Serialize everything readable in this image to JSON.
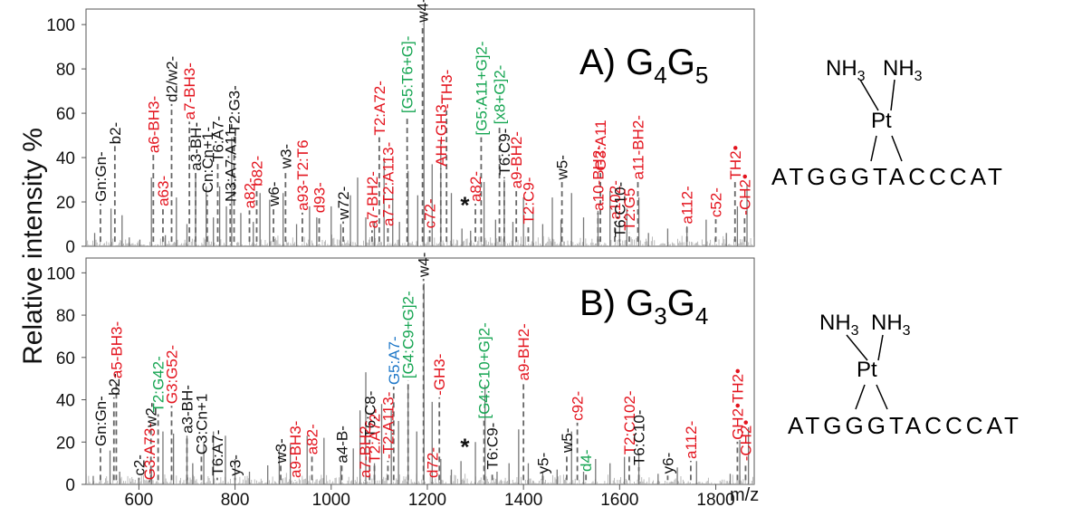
{
  "figure": {
    "ylabel": "Relative intensity %",
    "xunit": "m/z",
    "xticks": [
      600,
      800,
      1000,
      1200,
      1400,
      1600,
      1800
    ],
    "yticks": [
      0,
      20,
      40,
      60,
      80,
      100
    ],
    "colors": {
      "black": "#111111",
      "red": "#e3141e",
      "green": "#16a552",
      "blue": "#1f78c8",
      "gray": "#888888"
    }
  },
  "chart_data": [
    {
      "type": "line",
      "title": "A) G4G5",
      "title_parts": {
        "prefix": "A) G",
        "sub1": "4",
        "mid": "G",
        "sub2": "5"
      },
      "xlim": [
        490,
        1880
      ],
      "ylim": [
        0,
        107
      ],
      "peaks": [
        [
          508,
          6
        ],
        [
          542,
          17
        ],
        [
          565,
          14
        ],
        [
          580,
          4
        ],
        [
          602,
          3
        ],
        [
          626,
          31
        ],
        [
          655,
          5
        ],
        [
          678,
          22
        ],
        [
          700,
          10
        ],
        [
          718,
          33
        ],
        [
          740,
          27
        ],
        [
          755,
          13
        ],
        [
          768,
          27
        ],
        [
          782,
          18
        ],
        [
          793,
          49
        ],
        [
          812,
          15
        ],
        [
          838,
          11
        ],
        [
          852,
          24
        ],
        [
          872,
          21
        ],
        [
          900,
          24
        ],
        [
          928,
          10
        ],
        [
          955,
          18
        ],
        [
          970,
          13
        ],
        [
          1000,
          18
        ],
        [
          1020,
          10
        ],
        [
          1040,
          23
        ],
        [
          1055,
          31
        ],
        [
          1072,
          13
        ],
        [
          1090,
          11
        ],
        [
          1110,
          40
        ],
        [
          1128,
          27
        ],
        [
          1142,
          11
        ],
        [
          1160,
          34
        ],
        [
          1180,
          23
        ],
        [
          1193,
          105
        ],
        [
          1210,
          37
        ],
        [
          1228,
          48
        ],
        [
          1250,
          24
        ],
        [
          1272,
          8
        ],
        [
          1290,
          7
        ],
        [
          1318,
          29
        ],
        [
          1342,
          12
        ],
        [
          1360,
          30
        ],
        [
          1378,
          11
        ],
        [
          1400,
          22
        ],
        [
          1420,
          17
        ],
        [
          1440,
          10
        ],
        [
          1460,
          22
        ],
        [
          1478,
          12
        ],
        [
          1500,
          24
        ],
        [
          1525,
          13
        ],
        [
          1555,
          16
        ],
        [
          1580,
          25
        ],
        [
          1600,
          11
        ],
        [
          1615,
          17
        ],
        [
          1640,
          22
        ],
        [
          1660,
          6
        ],
        [
          1700,
          8
        ],
        [
          1740,
          9
        ],
        [
          1780,
          12
        ],
        [
          1822,
          6
        ],
        [
          1845,
          18
        ],
        [
          1865,
          28
        ]
      ],
      "labels": [
        {
          "t": "Gn:Gn-",
          "m": 520,
          "i": 20,
          "c": "black"
        },
        {
          "t": "b2-",
          "m": 550,
          "i": 46,
          "c": "black"
        },
        {
          "t": "a6-BH3-",
          "m": 630,
          "i": 42,
          "c": "red"
        },
        {
          "t": "a63-",
          "m": 650,
          "i": 18,
          "c": "red"
        },
        {
          "t": "d2/w2-",
          "m": 668,
          "i": 65,
          "c": "black"
        },
        {
          "t": "a7-BH3-",
          "m": 705,
          "i": 57,
          "c": "red"
        },
        {
          "t": "a3-BH-",
          "m": 718,
          "i": 34,
          "c": "black"
        },
        {
          "t": "Cn:Cn+1-",
          "m": 742,
          "i": 24,
          "c": "black"
        },
        {
          "t": "T6:A7-",
          "m": 764,
          "i": 38,
          "c": "black"
        },
        {
          "t": "N3:A7:A11-",
          "m": 790,
          "i": 20,
          "c": "black"
        },
        {
          "t": "T2:G3-",
          "m": 798,
          "i": 51,
          "c": "black"
        },
        {
          "t": "a82-",
          "m": 830,
          "i": 17,
          "c": "red"
        },
        {
          "t": "b82-",
          "m": 845,
          "i": 27,
          "c": "red"
        },
        {
          "t": "w6-",
          "m": 880,
          "i": 18,
          "c": "black"
        },
        {
          "t": "w3-",
          "m": 905,
          "i": 35,
          "c": "black"
        },
        {
          "t": "a93-T2:T6",
          "m": 940,
          "i": 16,
          "c": "red"
        },
        {
          "t": "d93-",
          "m": 975,
          "i": 15,
          "c": "red"
        },
        {
          "t": "w72-",
          "m": 1025,
          "i": 12,
          "c": "black"
        },
        {
          "t": "a7-BH2-",
          "m": 1085,
          "i": 8,
          "c": "red"
        },
        {
          "t": "T2:A72-",
          "m": 1100,
          "i": 50,
          "c": "red"
        },
        {
          "t": "a7-T2:A113-",
          "m": 1118,
          "i": 9,
          "c": "red"
        },
        {
          "t": "[G5:T6+G]-",
          "m": 1158,
          "i": 60,
          "c": "green"
        },
        {
          "t": "w4-",
          "m": 1190,
          "i": 101,
          "c": "black"
        },
        {
          "t": "c72-",
          "m": 1205,
          "i": 8,
          "c": "red"
        },
        {
          "t": "AH+GH3-",
          "m": 1228,
          "i": 36,
          "c": "red"
        },
        {
          "t": "-TH3-",
          "m": 1240,
          "i": 62,
          "c": "red"
        },
        {
          "t": "*",
          "m": 1278,
          "i": 15,
          "c": "black"
        },
        {
          "t": "a82-",
          "m": 1300,
          "i": 20,
          "c": "red"
        },
        {
          "t": "[G5:A11+G]2-",
          "m": 1312,
          "i": 50,
          "c": "green"
        },
        {
          "t": "[x8+G]2-",
          "m": 1350,
          "i": 55,
          "c": "green"
        },
        {
          "t": "T6:C9-",
          "m": 1360,
          "i": 32,
          "c": "black"
        },
        {
          "t": "a9-BH2-",
          "m": 1385,
          "i": 26,
          "c": "red"
        },
        {
          "t": "T2:C9-",
          "m": 1410,
          "i": 10,
          "c": "red"
        },
        {
          "t": "w5-",
          "m": 1480,
          "i": 30,
          "c": "black"
        },
        {
          "t": "a10-BH2-",
          "m": 1555,
          "i": 16,
          "c": "red"
        },
        {
          "t": "G3:A11",
          "m": 1560,
          "i": 34,
          "c": "red"
        },
        {
          "t": "a102-",
          "m": 1590,
          "i": 12,
          "c": "red"
        },
        {
          "t": "T6:C10-",
          "m": 1600,
          "i": 4,
          "c": "black"
        },
        {
          "t": "T2:G5",
          "m": 1620,
          "i": 7,
          "c": "red"
        },
        {
          "t": "a11-BH2-",
          "m": 1638,
          "i": 30,
          "c": "red"
        },
        {
          "t": "a112-",
          "m": 1740,
          "i": 10,
          "c": "red"
        },
        {
          "t": "c52-",
          "m": 1800,
          "i": 13,
          "c": "red"
        },
        {
          "t": "TH2•",
          "m": 1840,
          "i": 30,
          "c": "red"
        },
        {
          "t": "-CH2•",
          "m": 1860,
          "i": 14,
          "c": "red"
        }
      ]
    },
    {
      "type": "line",
      "title": "B) G3G4",
      "title_parts": {
        "prefix": "B) G",
        "sub1": "3",
        "mid": "G",
        "sub2": "4"
      },
      "xlim": [
        490,
        1880
      ],
      "ylim": [
        0,
        107
      ],
      "peaks": [
        [
          505,
          4
        ],
        [
          540,
          16
        ],
        [
          560,
          6
        ],
        [
          600,
          3
        ],
        [
          626,
          7
        ],
        [
          650,
          25
        ],
        [
          672,
          24
        ],
        [
          700,
          23
        ],
        [
          712,
          10
        ],
        [
          735,
          20
        ],
        [
          755,
          25
        ],
        [
          780,
          23
        ],
        [
          800,
          12
        ],
        [
          830,
          6
        ],
        [
          868,
          9
        ],
        [
          892,
          17
        ],
        [
          915,
          19
        ],
        [
          950,
          23
        ],
        [
          985,
          22
        ],
        [
          1020,
          9
        ],
        [
          1046,
          17
        ],
        [
          1060,
          35
        ],
        [
          1072,
          53
        ],
        [
          1090,
          10
        ],
        [
          1105,
          38
        ],
        [
          1125,
          35
        ],
        [
          1140,
          30
        ],
        [
          1160,
          45
        ],
        [
          1178,
          25
        ],
        [
          1193,
          95
        ],
        [
          1210,
          39
        ],
        [
          1228,
          12
        ],
        [
          1250,
          7
        ],
        [
          1270,
          11
        ],
        [
          1300,
          20
        ],
        [
          1320,
          47
        ],
        [
          1345,
          6
        ],
        [
          1370,
          10
        ],
        [
          1390,
          26
        ],
        [
          1410,
          10
        ],
        [
          1440,
          6
        ],
        [
          1470,
          7
        ],
        [
          1500,
          25
        ],
        [
          1525,
          6
        ],
        [
          1550,
          12
        ],
        [
          1580,
          10
        ],
        [
          1610,
          13
        ],
        [
          1640,
          14
        ],
        [
          1680,
          5
        ],
        [
          1720,
          8
        ],
        [
          1760,
          11
        ],
        [
          1830,
          5
        ],
        [
          1850,
          21
        ],
        [
          1868,
          27
        ]
      ],
      "labels": [
        {
          "t": "Gn:Gn-",
          "m": 520,
          "i": 18,
          "c": "black"
        },
        {
          "t": "b2-",
          "m": 548,
          "i": 42,
          "c": "black"
        },
        {
          "t": "a5-BH3-",
          "m": 553,
          "i": 50,
          "c": "red"
        },
        {
          "t": "c2-",
          "m": 600,
          "i": 4,
          "c": "black"
        },
        {
          "t": "G3:A73-",
          "m": 622,
          "i": 2,
          "c": "red"
        },
        {
          "t": "w2-",
          "m": 625,
          "i": 27,
          "c": "black"
        },
        {
          "t": "T2:G42-",
          "m": 640,
          "i": 34,
          "c": "green"
        },
        {
          "t": "G3:G52-",
          "m": 668,
          "i": 38,
          "c": "red"
        },
        {
          "t": "a3-BH-",
          "m": 700,
          "i": 24,
          "c": "black"
        },
        {
          "t": "C3:Cn+1",
          "m": 730,
          "i": 14,
          "c": "black"
        },
        {
          "t": "T6:A7-",
          "m": 763,
          "i": 4,
          "c": "black"
        },
        {
          "t": "y3-",
          "m": 800,
          "i": 4,
          "c": "black"
        },
        {
          "t": "w3-",
          "m": 895,
          "i": 10,
          "c": "black"
        },
        {
          "t": "a9-BH3-",
          "m": 925,
          "i": 3,
          "c": "red"
        },
        {
          "t": "a82-",
          "m": 960,
          "i": 14,
          "c": "red"
        },
        {
          "t": "a4-B-",
          "m": 1022,
          "i": 10,
          "c": "black"
        },
        {
          "t": "T6:C8-",
          "m": 1080,
          "i": 22,
          "c": "black"
        },
        {
          "t": "a7-BH2-",
          "m": 1070,
          "i": 3,
          "c": "red"
        },
        {
          "t": "T2:A72-",
          "m": 1090,
          "i": 10,
          "c": "red"
        },
        {
          "t": "-T2:A113-",
          "m": 1118,
          "i": 12,
          "c": "red"
        },
        {
          "t": "G5:A7-",
          "m": 1130,
          "i": 47,
          "c": "blue"
        },
        {
          "t": "[G4:C9+G]2-",
          "m": 1160,
          "i": 50,
          "c": "green"
        },
        {
          "t": "w4-",
          "m": 1192,
          "i": 98,
          "c": "black"
        },
        {
          "t": "-GH3-",
          "m": 1225,
          "i": 42,
          "c": "red"
        },
        {
          "t": "d72-",
          "m": 1210,
          "i": 3,
          "c": "red"
        },
        {
          "t": "*",
          "m": 1278,
          "i": 14,
          "c": "black"
        },
        {
          "t": "[G4:C10+G]2-",
          "m": 1318,
          "i": 31,
          "c": "green"
        },
        {
          "t": "T6:C9-",
          "m": 1335,
          "i": 7,
          "c": "black"
        },
        {
          "t": "a9-BH2-",
          "m": 1400,
          "i": 49,
          "c": "red"
        },
        {
          "t": "y5-",
          "m": 1440,
          "i": 5,
          "c": "black"
        },
        {
          "t": "w5-",
          "m": 1490,
          "i": 15,
          "c": "black"
        },
        {
          "t": "c92-",
          "m": 1512,
          "i": 30,
          "c": "red"
        },
        {
          "t": "d4-",
          "m": 1530,
          "i": 6,
          "c": "green"
        },
        {
          "t": "T2:C102-",
          "m": 1620,
          "i": 14,
          "c": "red"
        },
        {
          "t": "T6:C10-",
          "m": 1640,
          "i": 9,
          "c": "black"
        },
        {
          "t": "y6-",
          "m": 1700,
          "i": 5,
          "c": "black"
        },
        {
          "t": "a112-",
          "m": 1748,
          "i": 12,
          "c": "red"
        },
        {
          "t": "GH2•TH2•",
          "m": 1845,
          "i": 21,
          "c": "red"
        },
        {
          "t": "-CH2•",
          "m": 1862,
          "i": 11,
          "c": "red"
        }
      ]
    }
  ],
  "structures": [
    {
      "ligand1": "NH",
      "ligand1_sub": "3",
      "ligand2": "NH",
      "ligand2_sub": "3",
      "metal": "Pt",
      "sequence": "ATGGGTACCCAT"
    },
    {
      "ligand1": "NH",
      "ligand1_sub": "3",
      "ligand2": "NH",
      "ligand2_sub": "3",
      "metal": "Pt",
      "sequence": "ATGGGTACCCAT"
    }
  ]
}
